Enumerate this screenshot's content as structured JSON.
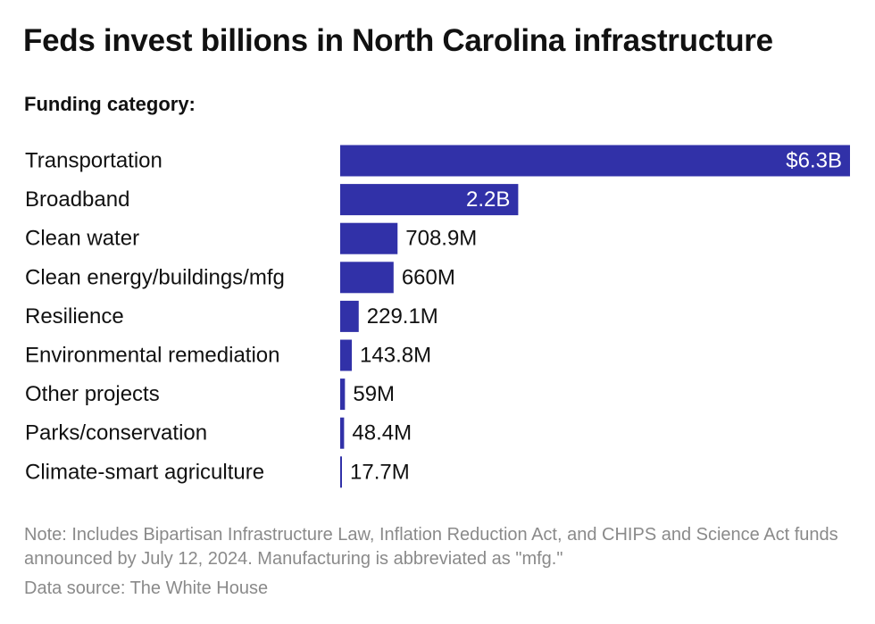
{
  "header": {
    "title": "Feds invest billions in North Carolina infrastructure",
    "subtitle": "Funding category:"
  },
  "chart_data": {
    "type": "bar",
    "orientation": "horizontal",
    "bar_color": "#3131a8",
    "xlim": [
      0,
      6.3
    ],
    "unit": "billion USD",
    "categories": [
      "Transportation",
      "Broadband",
      "Clean water",
      "Clean energy/buildings/mfg",
      "Resilience",
      "Environmental remediation",
      "Other projects",
      "Parks/conservation",
      "Climate-smart agriculture"
    ],
    "values": [
      6.3,
      2.2,
      0.7089,
      0.66,
      0.2291,
      0.1438,
      0.059,
      0.0484,
      0.0177
    ],
    "data_labels": [
      "$6.3B",
      "2.2B",
      "708.9M",
      "660M",
      "229.1M",
      "143.8M",
      "59M",
      "48.4M",
      "17.7M"
    ]
  },
  "footer": {
    "note": "Note: Includes Bipartisan Infrastructure Law, Inflation Reduction Act, and CHIPS and Science Act funds announced by July 12, 2024. Manufacturing is abbreviated as \"mfg.\"",
    "source": "Data source: The White House"
  }
}
